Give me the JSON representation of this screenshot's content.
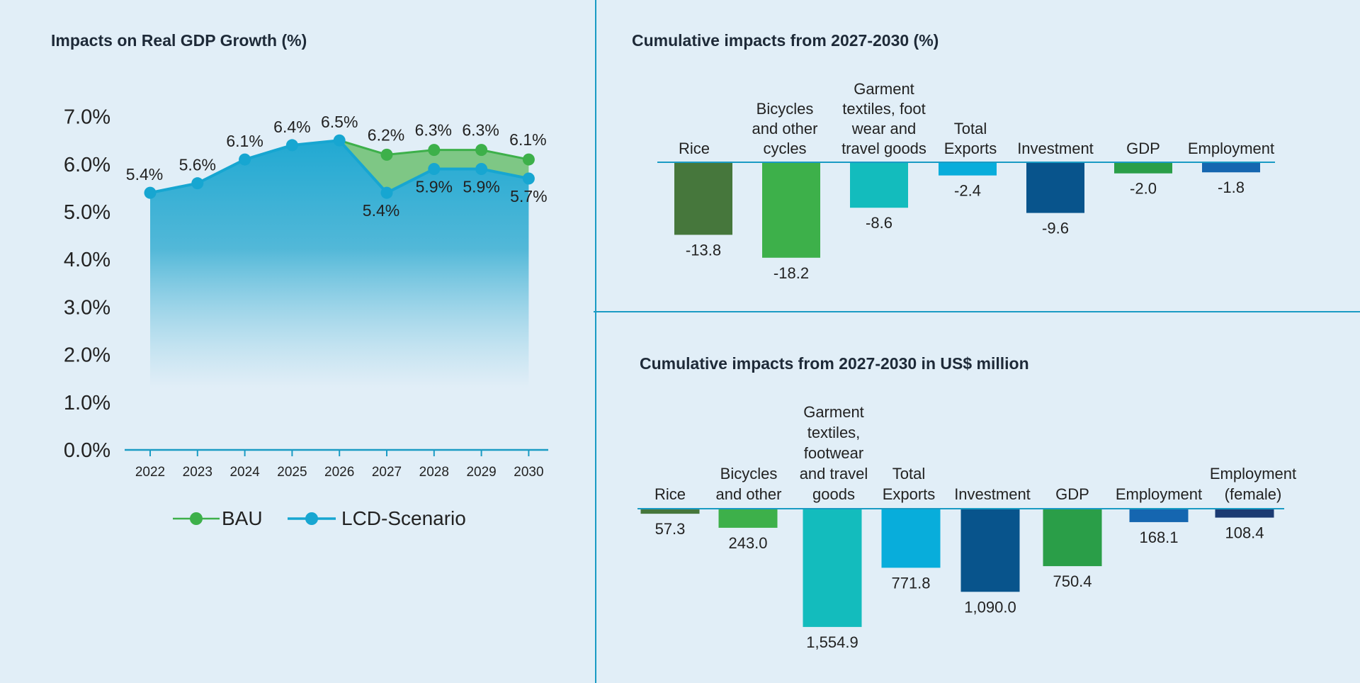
{
  "chart_data": [
    {
      "type": "area",
      "title": "Impacts on Real GDP Growth (%)",
      "x": [
        "2022",
        "2023",
        "2024",
        "2025",
        "2026",
        "2027",
        "2028",
        "2029",
        "2030"
      ],
      "y_ticks": [
        "0.0%",
        "1.0%",
        "2.0%",
        "3.0%",
        "4.0%",
        "5.0%",
        "6.0%",
        "7.0%"
      ],
      "ylim": [
        0,
        7
      ],
      "series": [
        {
          "name": "BAU",
          "color": "#3db04a",
          "values": [
            5.4,
            5.6,
            6.1,
            6.4,
            6.5,
            6.2,
            6.3,
            6.3,
            6.1
          ],
          "labels": [
            "",
            "",
            "",
            "",
            "",
            "6.2%",
            "6.3%",
            "6.3%",
            "6.1%"
          ]
        },
        {
          "name": "LCD-Scenario",
          "color": "#17a6d1",
          "values": [
            5.4,
            5.6,
            6.1,
            6.4,
            6.5,
            5.4,
            5.9,
            5.9,
            5.7
          ],
          "labels": [
            "5.4%",
            "5.6%",
            "6.1%",
            "6.4%",
            "6.5%",
            "5.4%",
            "5.9%",
            "5.9%",
            "5.7%"
          ]
        }
      ],
      "legend": "bottom"
    },
    {
      "type": "bar",
      "title": "Cumulative impacts from 2027-2030 (%)",
      "categories": [
        [
          "Rice"
        ],
        [
          "Bicycles",
          "and other",
          "cycles"
        ],
        [
          "Garment",
          "textiles, foot",
          "wear and",
          "travel goods"
        ],
        [
          "Total",
          "Exports"
        ],
        [
          "Investment"
        ],
        [
          "GDP"
        ],
        [
          "Employment"
        ]
      ],
      "values": [
        -13.8,
        -18.2,
        -8.6,
        -2.4,
        -9.6,
        -2.0,
        -1.8
      ],
      "value_labels": [
        "-13.8",
        "-18.2",
        "-8.6",
        "-2.4",
        "-9.6",
        "-2.0",
        "-1.8"
      ],
      "colors": [
        "#46773c",
        "#3db04a",
        "#13bcbd",
        "#08addb",
        "#08548c",
        "#2a9e48",
        "#1566b0"
      ]
    },
    {
      "type": "bar",
      "title": "Cumulative impacts from 2027-2030 in US$ million",
      "categories": [
        [
          "Rice"
        ],
        [
          "Bicycles",
          "and other"
        ],
        [
          "Garment",
          "textiles,",
          "footwear",
          "and travel",
          "goods"
        ],
        [
          "Total",
          "Exports"
        ],
        [
          "Investment"
        ],
        [
          "GDP"
        ],
        [
          "Employment"
        ],
        [
          "Employment",
          "(female)"
        ]
      ],
      "values": [
        57.3,
        243.0,
        1554.9,
        771.8,
        1090.0,
        750.4,
        168.1,
        108.4
      ],
      "value_labels": [
        "57.3",
        "243.0",
        "1,554.9",
        "771.8",
        "1,090.0",
        "750.4",
        "168.1",
        "108.4"
      ],
      "colors": [
        "#46773c",
        "#3db04a",
        "#13bcbd",
        "#08addb",
        "#08548c",
        "#2a9e48",
        "#1566b0",
        "#1b3a72"
      ]
    }
  ]
}
